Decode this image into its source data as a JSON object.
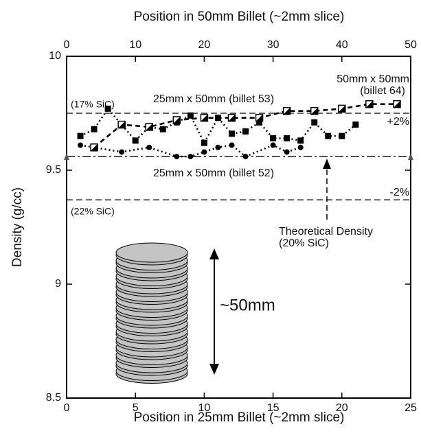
{
  "chart_data": {
    "type": "line",
    "x_label": "Position in  25mm Billet (~2mm slice)",
    "x2_label": "Position in  50mm Billet (~2mm slice)",
    "y_label": "Density (g/cc)",
    "xlim": [
      0,
      25
    ],
    "xticks": [
      0,
      5,
      10,
      15,
      20,
      25
    ],
    "x2lim": [
      0,
      50
    ],
    "x2ticks": [
      0,
      10,
      20,
      30,
      40,
      50
    ],
    "ylim": [
      8.5,
      10
    ],
    "yticks": [
      8.5,
      9,
      9.5,
      10
    ],
    "series": [
      {
        "name": "25mm x 50mm (billet 53)",
        "color": "#000000",
        "marker": "square",
        "x": [
          1,
          2,
          3,
          5,
          6,
          7,
          8,
          9,
          10,
          11,
          12,
          13,
          14,
          15,
          16,
          17,
          18,
          19,
          20,
          21
        ],
        "values": [
          9.65,
          9.68,
          9.77,
          9.63,
          9.69,
          9.68,
          9.71,
          9.74,
          9.62,
          9.73,
          9.66,
          9.67,
          9.71,
          9.64,
          9.64,
          9.63,
          9.71,
          9.65,
          9.65,
          9.7
        ]
      },
      {
        "name": "25mm x 50mm (billet 52)",
        "color": "#000000",
        "marker": "circle",
        "x": [
          1,
          2,
          4,
          6,
          8,
          9,
          10,
          11,
          12,
          13,
          15,
          16,
          17
        ],
        "values": [
          9.61,
          9.6,
          9.58,
          9.6,
          9.56,
          9.56,
          9.58,
          9.6,
          9.61,
          9.56,
          9.61,
          9.58,
          9.6
        ]
      },
      {
        "name": "50mm x 50mm\n(billet 64)",
        "color": "#000000",
        "marker": "half-square",
        "axis": "x2",
        "x": [
          4,
          8,
          12,
          16,
          20,
          24,
          28,
          32,
          36,
          40,
          44,
          48
        ],
        "values": [
          9.6,
          9.7,
          9.69,
          9.72,
          9.73,
          9.73,
          9.73,
          9.76,
          9.76,
          9.77,
          9.79,
          9.79
        ]
      }
    ],
    "reference_lines": [
      {
        "value": 9.75,
        "style": "dashed"
      },
      {
        "value": 9.56,
        "style": "dashdot"
      },
      {
        "value": 9.37,
        "style": "dashed"
      }
    ],
    "annotations": [
      "(17% SiC)",
      "+2%",
      "-2%",
      "(22% SiC)",
      "Theoretical Density",
      "(20% SiC)",
      "~50mm"
    ]
  }
}
